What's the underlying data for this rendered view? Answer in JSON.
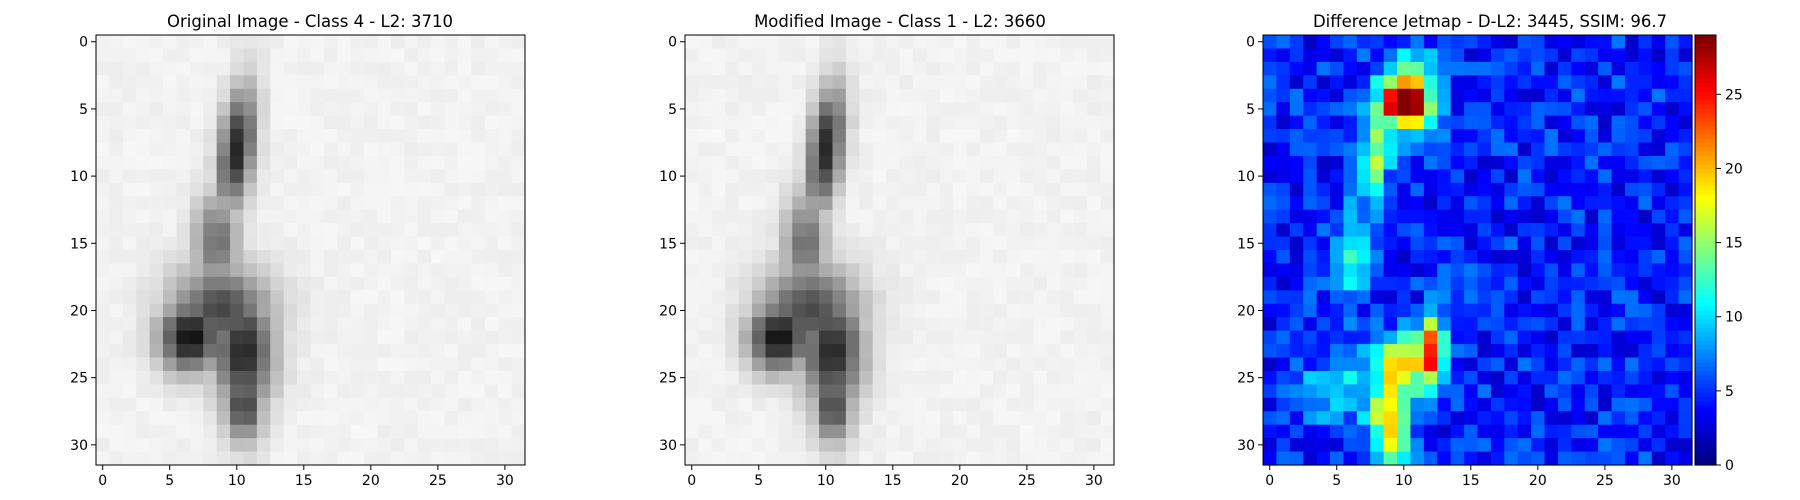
{
  "chart_data": [
    {
      "type": "heatmap",
      "title": "Original Image - Class 4 - L2: 3710",
      "title_color": "#000000",
      "colormap": "gray",
      "x_ticks": [
        0,
        5,
        10,
        15,
        20,
        25,
        30
      ],
      "y_ticks": [
        0,
        5,
        10,
        15,
        20,
        25,
        30
      ],
      "xlim": [
        -0.5,
        31.5
      ],
      "ylim": [
        31.5,
        -0.5
      ],
      "grid": false
    },
    {
      "type": "heatmap",
      "title": "Modified Image - Class 1 - L2: 3660",
      "title_color": "#ff0000",
      "colormap": "gray",
      "x_ticks": [
        0,
        5,
        10,
        15,
        20,
        25,
        30
      ],
      "y_ticks": [
        0,
        5,
        10,
        15,
        20,
        25,
        30
      ],
      "xlim": [
        -0.5,
        31.5
      ],
      "ylim": [
        31.5,
        -0.5
      ],
      "grid": false
    },
    {
      "type": "heatmap",
      "title": "Difference Jetmap - D-L2: 3445, SSIM: 96.7",
      "title_color": "#000000",
      "colormap": "jet",
      "x_ticks": [
        0,
        5,
        10,
        15,
        20,
        25,
        30
      ],
      "y_ticks": [
        0,
        5,
        10,
        15,
        20,
        25,
        30
      ],
      "xlim": [
        -0.5,
        31.5
      ],
      "ylim": [
        31.5,
        -0.5
      ],
      "grid": false,
      "colorbar": {
        "min": 0,
        "max": 29,
        "ticks": [
          0,
          5,
          10,
          15,
          20,
          25
        ]
      }
    }
  ]
}
